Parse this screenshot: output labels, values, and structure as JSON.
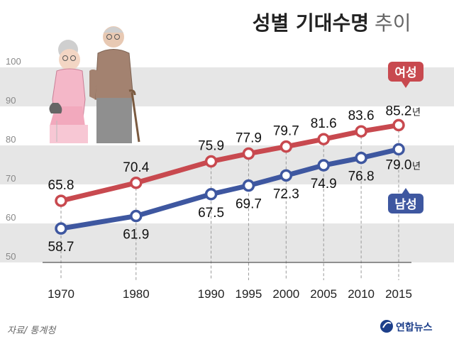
{
  "chart_data": {
    "type": "line",
    "title": "성별 기대수명",
    "subtitle": "추이",
    "x": [
      1970,
      1980,
      1990,
      1995,
      2000,
      2005,
      2010,
      2015
    ],
    "xticks": [
      "1970",
      "1980",
      "1990",
      "1995",
      "2000",
      "2005",
      "2010",
      "2015"
    ],
    "yticks": [
      "100",
      "90",
      "80",
      "70",
      "60",
      "50"
    ],
    "ylim": [
      50,
      100
    ],
    "grid": "horizontal bands",
    "unit": "년",
    "series": [
      {
        "name": "여성",
        "color": "#c8494f",
        "values": [
          65.8,
          70.4,
          75.9,
          77.9,
          79.7,
          81.6,
          83.6,
          85.2
        ],
        "labels": [
          "65.8",
          "70.4",
          "75.9",
          "77.9",
          "79.7",
          "81.6",
          "83.6",
          "85.2"
        ]
      },
      {
        "name": "남성",
        "color": "#3e57a0",
        "values": [
          58.7,
          61.9,
          67.5,
          69.7,
          72.3,
          74.9,
          76.8,
          79.0
        ],
        "labels": [
          "58.7",
          "61.9",
          "67.5",
          "69.7",
          "72.3",
          "74.9",
          "76.8",
          "79.0"
        ]
      }
    ],
    "source": "자료/ 통계청",
    "logo": "연합뉴스"
  }
}
